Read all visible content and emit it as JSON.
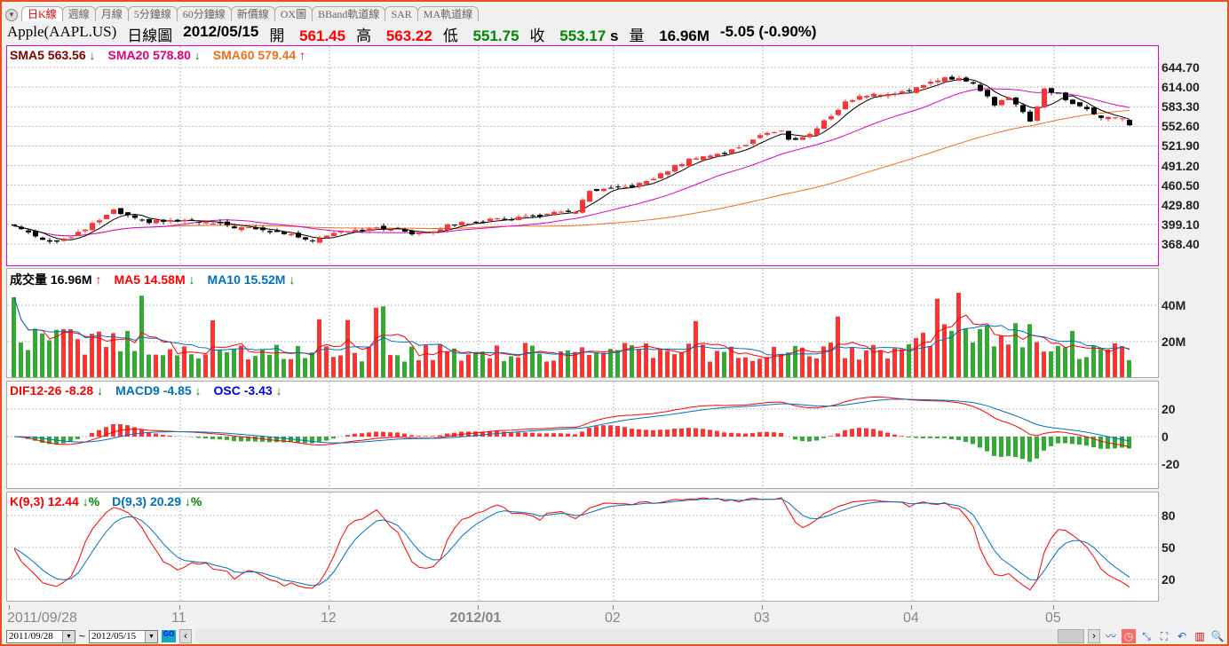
{
  "tabs": [
    "日K線",
    "週線",
    "月線",
    "5分鐘線",
    "60分鐘線",
    "新價線",
    "OX圖",
    "BBand軌道線",
    "SAR",
    "MA軌道線"
  ],
  "header": {
    "symbol": "Apple(AAPL.US)",
    "chart_type": "日線圖",
    "date": "2012/05/15",
    "open_label": "開",
    "open": "561.45",
    "high_label": "高",
    "high": "563.22",
    "low_label": "低",
    "low": "551.75",
    "close_label": "收",
    "close": "553.17",
    "close_suffix": "s",
    "vol_label": "量",
    "volume": "16.96M",
    "change": "-5.05 (-0.90%)"
  },
  "legends": {
    "price": [
      {
        "text": "SMA5 563.56",
        "arrow": "↓",
        "color": "#800000",
        "arrow_color": "#080"
      },
      {
        "text": "SMA20 578.80",
        "arrow": "↓",
        "color": "#e0007f",
        "arrow_color": "#080"
      },
      {
        "text": "SMA60 579.44",
        "arrow": "↑",
        "color": "#f07020",
        "arrow_color": "#f00"
      }
    ],
    "volume": [
      {
        "text": "成交量 16.96M",
        "arrow": "↑",
        "color": "#000",
        "arrow_color": "#f00"
      },
      {
        "text": "MA5 14.58M",
        "arrow": "↓",
        "color": "#f00",
        "arrow_color": "#080"
      },
      {
        "text": "MA10 15.52M",
        "arrow": "↓",
        "color": "#0070c0",
        "arrow_color": "#080"
      }
    ],
    "macd": [
      {
        "text": "DIF12-26 -8.28",
        "arrow": "↓",
        "color": "#f00",
        "arrow_color": "#080"
      },
      {
        "text": "MACD9 -4.85",
        "arrow": "↓",
        "color": "#0070c0",
        "arrow_color": "#080"
      },
      {
        "text": "OSC -3.43",
        "arrow": "↓",
        "color": "#0000e0",
        "arrow_color": "#080"
      }
    ],
    "kd": [
      {
        "text": "K(9,3) 12.44",
        "arrow": "↓%",
        "color": "#f00",
        "arrow_color": "#080"
      },
      {
        "text": "D(9,3) 20.29",
        "arrow": "↓%",
        "color": "#0070c0",
        "arrow_color": "#080"
      }
    ]
  },
  "chart_data": {
    "type": "candlestick",
    "price_ticks": [
      "644.70",
      "614.00",
      "583.30",
      "552.60",
      "521.90",
      "491.20",
      "460.50",
      "429.80",
      "399.10",
      "368.40"
    ],
    "price_range": [
      368.4,
      644.7
    ],
    "volume_ticks": [
      "40M",
      "20M"
    ],
    "macd_ticks": [
      "20",
      "0",
      "-20"
    ],
    "kd_ticks": [
      "80",
      "50",
      "20"
    ],
    "date_labels": [
      "2011/09/28",
      "11",
      "12",
      "2012/01",
      "02",
      "03",
      "04",
      "05"
    ],
    "month_start_bars": [
      0,
      24,
      45,
      66,
      85,
      106,
      127,
      147
    ],
    "bars": 158,
    "close_keypoints": [
      [
        0,
        397
      ],
      [
        5,
        372
      ],
      [
        8,
        378
      ],
      [
        14,
        420
      ],
      [
        18,
        403
      ],
      [
        24,
        405
      ],
      [
        28,
        400
      ],
      [
        38,
        385
      ],
      [
        42,
        375
      ],
      [
        46,
        390
      ],
      [
        53,
        393
      ],
      [
        56,
        385
      ],
      [
        59,
        390
      ],
      [
        62,
        400
      ],
      [
        66,
        405
      ],
      [
        71,
        410
      ],
      [
        79,
        420
      ],
      [
        81,
        450
      ],
      [
        85,
        455
      ],
      [
        89,
        465
      ],
      [
        93,
        490
      ],
      [
        96,
        505
      ],
      [
        100,
        510
      ],
      [
        103,
        525
      ],
      [
        105,
        540
      ],
      [
        108,
        545
      ],
      [
        109,
        530
      ],
      [
        112,
        540
      ],
      [
        114,
        560
      ],
      [
        117,
        590
      ],
      [
        119,
        600
      ],
      [
        124,
        605
      ],
      [
        128,
        615
      ],
      [
        131,
        630
      ],
      [
        134,
        625
      ],
      [
        136,
        610
      ],
      [
        138,
        585
      ],
      [
        140,
        600
      ],
      [
        142,
        575
      ],
      [
        143,
        560
      ],
      [
        145,
        610
      ],
      [
        147,
        605
      ],
      [
        149,
        585
      ],
      [
        151,
        580
      ],
      [
        153,
        568
      ],
      [
        156,
        565
      ],
      [
        157,
        553
      ]
    ],
    "volume_base_M": 15
  }
}
